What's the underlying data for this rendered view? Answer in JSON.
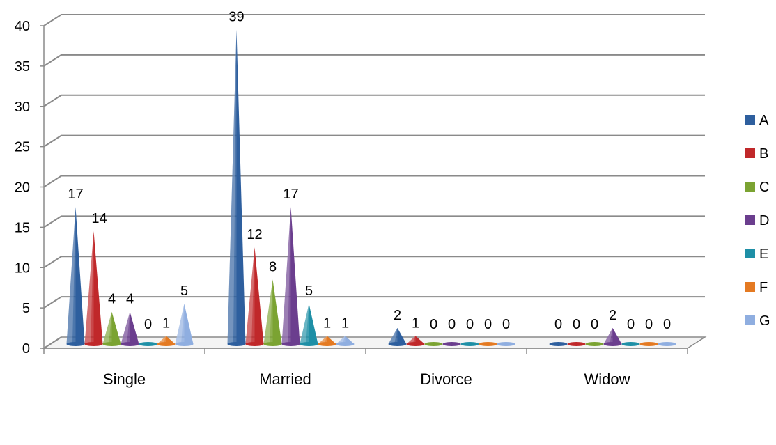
{
  "chart_data": {
    "type": "bar",
    "bar_shape": "cone",
    "three_d": true,
    "categories": [
      "Single",
      "Married",
      "Divorce",
      "Widow"
    ],
    "series": [
      {
        "name": "A",
        "values": [
          17,
          39,
          2,
          0
        ],
        "color": "#2E5F9E"
      },
      {
        "name": "B",
        "values": [
          14,
          12,
          1,
          0
        ],
        "color": "#C0282A"
      },
      {
        "name": "C",
        "values": [
          4,
          8,
          0,
          0
        ],
        "color": "#7BA332"
      },
      {
        "name": "D",
        "values": [
          4,
          17,
          0,
          2
        ],
        "color": "#6B3E8E"
      },
      {
        "name": "E",
        "values": [
          0,
          5,
          0,
          0
        ],
        "color": "#1E8FA6"
      },
      {
        "name": "F",
        "values": [
          1,
          1,
          0,
          0
        ],
        "color": "#E47A22"
      },
      {
        "name": "G",
        "values": [
          5,
          1,
          0,
          0
        ],
        "color": "#8FAEE0"
      }
    ],
    "ylim": [
      0,
      40
    ],
    "yticks": [
      0,
      5,
      10,
      15,
      20,
      25,
      30,
      35,
      40
    ],
    "grid": true,
    "legend_position": "right",
    "data_labels": true,
    "title": "",
    "xlabel": "",
    "ylabel": ""
  }
}
